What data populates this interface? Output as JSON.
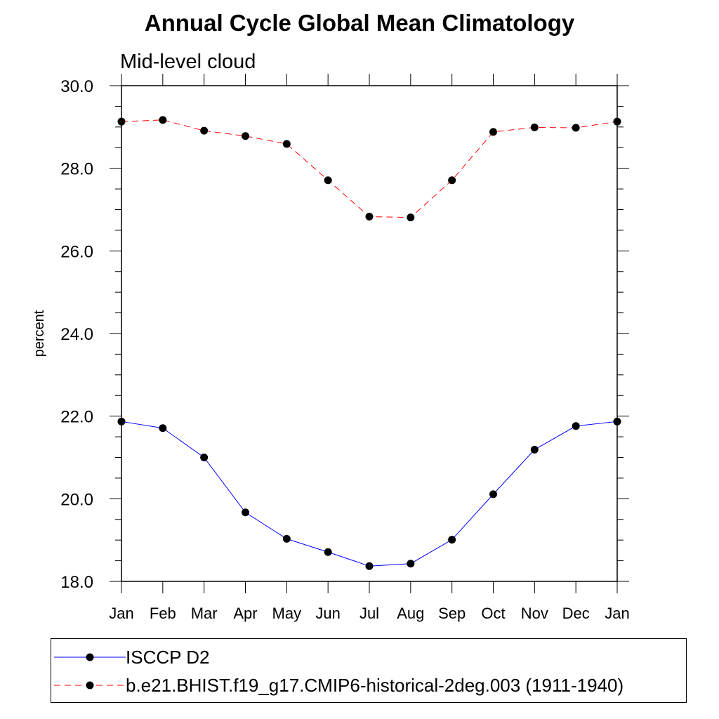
{
  "title": "Annual Cycle Global Mean Climatology",
  "subtitle": "Mid-level cloud",
  "chart_data": {
    "type": "line",
    "title": "Annual Cycle Global Mean Climatology",
    "subtitle": "Mid-level cloud",
    "xlabel": "",
    "ylabel": "percent",
    "ylim": [
      18.0,
      30.0
    ],
    "yticks": [
      "18.0",
      "20.0",
      "22.0",
      "24.0",
      "26.0",
      "28.0",
      "30.0"
    ],
    "categories": [
      "Jan",
      "Feb",
      "Mar",
      "Apr",
      "May",
      "Jun",
      "Jul",
      "Aug",
      "Sep",
      "Oct",
      "Nov",
      "Dec",
      "Jan"
    ],
    "grid": false,
    "legend_position": "bottom",
    "series": [
      {
        "name": "ISCCP D2",
        "color": "#0000ff",
        "style": "solid",
        "marker": "filled-circle",
        "values": [
          21.87,
          21.71,
          21.0,
          19.67,
          19.03,
          18.71,
          18.37,
          18.43,
          19.01,
          20.11,
          21.19,
          21.76,
          21.87
        ]
      },
      {
        "name": "b.e21.BHIST.f19_g17.CMIP6-historical-2deg.003 (1911-1940)",
        "color": "#ff0000",
        "style": "dashed",
        "marker": "filled-circle",
        "values": [
          29.13,
          29.17,
          28.91,
          28.78,
          28.59,
          27.71,
          26.83,
          26.81,
          27.71,
          28.88,
          28.99,
          28.98,
          29.13
        ]
      }
    ]
  }
}
